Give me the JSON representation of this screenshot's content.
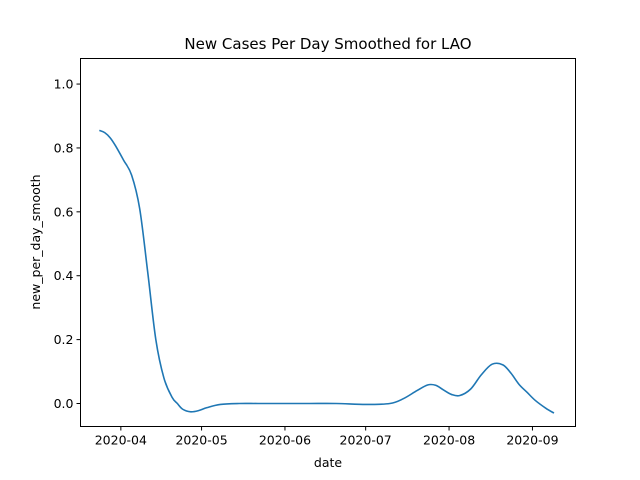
{
  "chart_data": {
    "type": "line",
    "title": "New Cases Per Day Smoothed for LAO",
    "xlabel": "date",
    "ylabel": "new_per_day_smooth",
    "x_ticks": [
      {
        "label": "2020-04",
        "date": "2020-04-01"
      },
      {
        "label": "2020-05",
        "date": "2020-05-01"
      },
      {
        "label": "2020-06",
        "date": "2020-06-01"
      },
      {
        "label": "2020-07",
        "date": "2020-07-01"
      },
      {
        "label": "2020-08",
        "date": "2020-08-01"
      },
      {
        "label": "2020-09",
        "date": "2020-09-01"
      }
    ],
    "y_ticks": [
      "0.0",
      "0.2",
      "0.4",
      "0.6",
      "0.8",
      "1.0"
    ],
    "xlim": [
      "2020-03-17",
      "2020-09-17"
    ],
    "ylim": [
      -0.072,
      1.08
    ],
    "grid": false,
    "series": [
      {
        "color": "#1f77b4",
        "x": [
          "2020-03-24",
          "2020-03-26",
          "2020-03-28",
          "2020-03-30",
          "2020-04-02",
          "2020-04-05",
          "2020-04-08",
          "2020-04-11",
          "2020-04-14",
          "2020-04-17",
          "2020-04-20",
          "2020-04-22",
          "2020-04-24",
          "2020-04-27",
          "2020-04-30",
          "2020-05-03",
          "2020-05-08",
          "2020-05-15",
          "2020-05-22",
          "2020-05-31",
          "2020-06-10",
          "2020-06-20",
          "2020-07-01",
          "2020-07-10",
          "2020-07-15",
          "2020-07-20",
          "2020-07-24",
          "2020-07-27",
          "2020-07-30",
          "2020-08-02",
          "2020-08-05",
          "2020-08-09",
          "2020-08-13",
          "2020-08-17",
          "2020-08-21",
          "2020-08-24",
          "2020-08-27",
          "2020-08-30",
          "2020-09-02",
          "2020-09-06",
          "2020-09-09"
        ],
        "y": [
          0.855,
          0.848,
          0.832,
          0.807,
          0.762,
          0.715,
          0.61,
          0.41,
          0.2,
          0.08,
          0.02,
          0.0,
          -0.018,
          -0.026,
          -0.022,
          -0.013,
          -0.003,
          0.0,
          0.0,
          0.0,
          0.0,
          0.0,
          -0.003,
          0.0,
          0.015,
          0.04,
          0.058,
          0.057,
          0.042,
          0.028,
          0.025,
          0.045,
          0.09,
          0.123,
          0.121,
          0.095,
          0.06,
          0.035,
          0.01,
          -0.015,
          -0.03
        ]
      }
    ]
  }
}
